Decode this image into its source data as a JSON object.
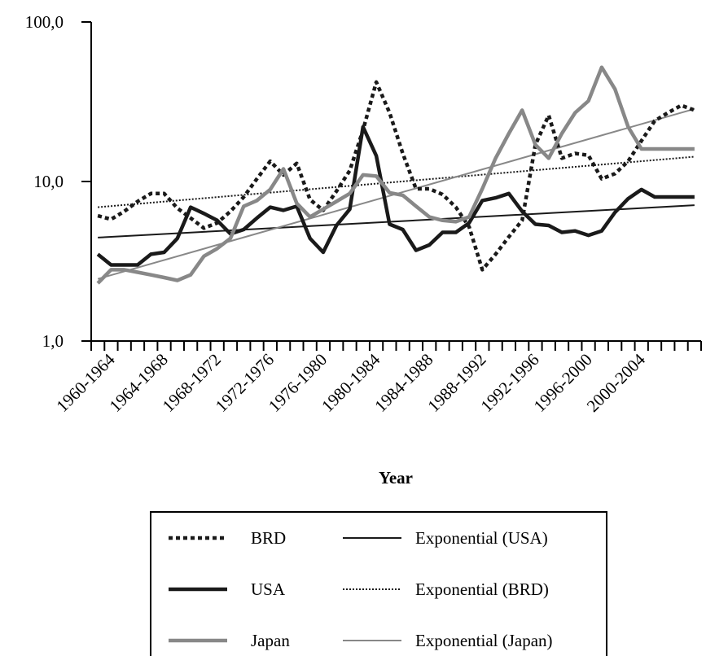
{
  "chart_data": {
    "type": "line",
    "xlabel": "Year",
    "ylabel": "",
    "y_scale": "log",
    "ylim": [
      1,
      100
    ],
    "y_ticks": [
      "1,0",
      "10,0",
      "100,0"
    ],
    "x_tick_labels": [
      "1960-1964",
      "1964-1968",
      "1968-1972",
      "1972-1976",
      "1976-1980",
      "1980-1984",
      "1984-1988",
      "1988-1992",
      "1992-1996",
      "1996-2000",
      "2000-2004"
    ],
    "x": [
      "1960-1964",
      "1961-1965",
      "1962-1966",
      "1963-1967",
      "1964-1968",
      "1965-1969",
      "1966-1970",
      "1967-1971",
      "1968-1972",
      "1969-1973",
      "1970-1974",
      "1971-1975",
      "1972-1976",
      "1973-1977",
      "1974-1978",
      "1975-1979",
      "1976-1980",
      "1977-1981",
      "1978-1982",
      "1979-1983",
      "1980-1984",
      "1981-1985",
      "1982-1986",
      "1983-1987",
      "1984-1988",
      "1985-1989",
      "1986-1990",
      "1987-1991",
      "1988-1992",
      "1989-1993",
      "1990-1994",
      "1991-1995",
      "1992-1996",
      "1993-1997",
      "1994-1998",
      "1995-1999",
      "1996-2000",
      "1997-2001",
      "1998-2002",
      "1999-2003",
      "2000-2004",
      "2001-2005",
      "2002-2006",
      "2003-2007",
      "2004-2008",
      "2005-2009"
    ],
    "series": [
      {
        "name": "BRD",
        "color": "#1a1a1a",
        "style": "thick-dotted",
        "values": [
          6.1,
          5.8,
          6.5,
          7.5,
          8.4,
          8.4,
          6.8,
          5.9,
          5.1,
          5.5,
          6.5,
          8.0,
          10.4,
          13.4,
          11.0,
          13.0,
          7.7,
          6.6,
          8.7,
          11.7,
          21.0,
          42.0,
          27.0,
          15.0,
          9.0,
          9.0,
          8.3,
          6.9,
          5.2,
          2.8,
          3.5,
          4.5,
          5.7,
          17.0,
          26.0,
          14.0,
          15.0,
          14.6,
          10.4,
          11.2,
          13.4,
          18.0,
          24.0,
          27.0,
          30.0,
          28.0
        ]
      },
      {
        "name": "USA",
        "color": "#1a1a1a",
        "style": "thick-solid",
        "values": [
          3.5,
          3.0,
          3.0,
          3.0,
          3.5,
          3.6,
          4.4,
          6.9,
          6.3,
          5.7,
          4.7,
          5.0,
          5.9,
          6.9,
          6.6,
          7.0,
          4.4,
          3.6,
          5.3,
          6.7,
          22.0,
          14.5,
          5.4,
          5.0,
          3.7,
          4.0,
          4.8,
          4.8,
          5.5,
          7.6,
          7.9,
          8.4,
          6.5,
          5.4,
          5.3,
          4.8,
          4.9,
          4.6,
          4.9,
          6.4,
          7.8,
          8.9,
          8.0,
          8.0,
          8.0,
          8.0
        ]
      },
      {
        "name": "Japan",
        "color": "#888888",
        "style": "thick-solid",
        "values": [
          2.3,
          2.8,
          2.8,
          2.7,
          2.6,
          2.5,
          2.4,
          2.6,
          3.4,
          3.8,
          4.4,
          7.0,
          7.6,
          8.9,
          12.0,
          7.3,
          6.0,
          6.7,
          7.5,
          8.4,
          11.0,
          10.8,
          8.5,
          8.2,
          7.0,
          6.0,
          5.7,
          5.6,
          6.0,
          9.0,
          14.0,
          20.0,
          28.0,
          17.0,
          14.0,
          20.0,
          27.0,
          32.0,
          52.0,
          38.0,
          22.0,
          16.0,
          16.0,
          16.0,
          16.0,
          16.0
        ]
      },
      {
        "name": "Exponential (USA)",
        "color": "#1a1a1a",
        "style": "thin-solid",
        "trend": true,
        "start": 4.45,
        "end": 7.1
      },
      {
        "name": "Exponential (BRD)",
        "color": "#1a1a1a",
        "style": "thin-dotted",
        "trend": true,
        "start": 6.9,
        "end": 14.3
      },
      {
        "name": "Exponential (Japan)",
        "color": "#888888",
        "style": "thin-solid",
        "trend": true,
        "start": 2.45,
        "end": 28.5
      }
    ],
    "legend": {
      "placement": "bottom",
      "entries": [
        "BRD",
        "Exponential (USA)",
        "USA",
        "Exponential (BRD)",
        "Japan",
        "Exponential (Japan)"
      ]
    }
  }
}
